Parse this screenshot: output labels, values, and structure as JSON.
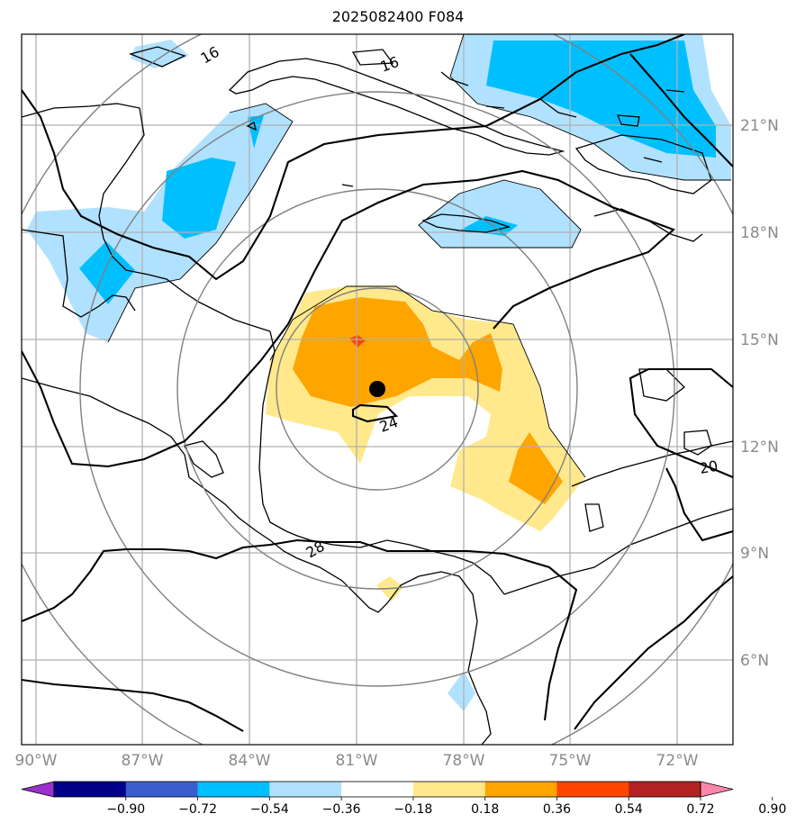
{
  "title": "2025082400 F084",
  "map": {
    "lon_labels": [
      "90°W",
      "87°W",
      "84°W",
      "81°W",
      "78°W",
      "75°W",
      "72°W"
    ],
    "lat_labels": [
      "21°N",
      "18°N",
      "15°N",
      "12°N",
      "9°N",
      "6°N"
    ],
    "contour_labels": [
      "16",
      "16",
      "24",
      "28",
      "20"
    ]
  },
  "colorbar": {
    "ticks": [
      "−0.90",
      "−0.72",
      "−0.54",
      "−0.36",
      "−0.18",
      "0.18",
      "0.36",
      "0.54",
      "0.72",
      "0.90"
    ],
    "colors": [
      "#9932cc",
      "#00008b",
      "#3a5fcd",
      "#00bfff",
      "#b0e2ff",
      "#ffffff",
      "#ffe98c",
      "#ffa500",
      "#ff4500",
      "#b22222",
      "#ff88aa"
    ]
  }
}
